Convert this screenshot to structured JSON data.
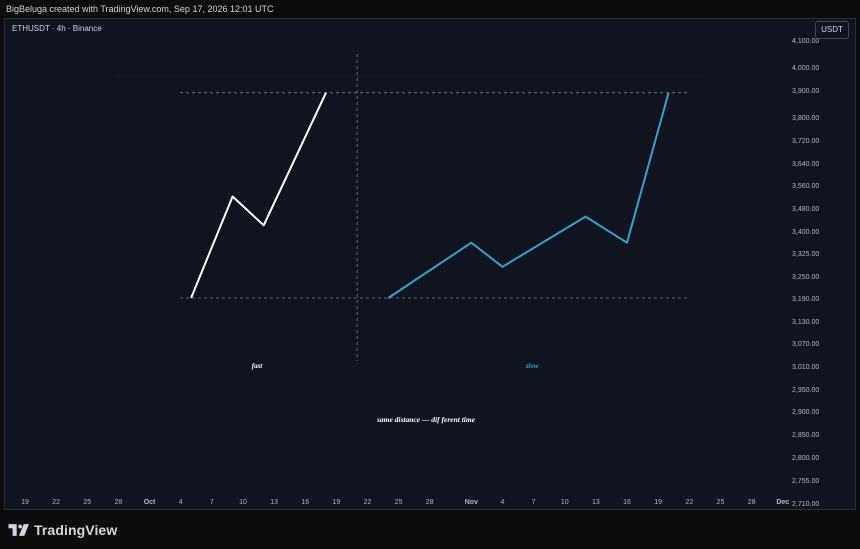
{
  "header": {
    "credit": "BigBeluga created with TradingView.com, Sep 17, 2026 12:01 UTC"
  },
  "chart_header": {
    "symbol": "ETHUSDT · 4h · Binance",
    "currency": "USDT"
  },
  "footer": {
    "brand": "TradingView",
    "logo_icon": "tradingview-logo-icon"
  },
  "colors": {
    "background": "#10141f",
    "fast": "#ffffff",
    "slow": "#3aa0c8",
    "axis_text": "#b2b5be",
    "guide": "#787b86"
  },
  "chart_data": {
    "type": "line",
    "title": "",
    "yaxis": {
      "ticks": [
        4100,
        4000,
        3900,
        3800,
        3720,
        3640,
        3560,
        3480,
        3400,
        3325,
        3250,
        3190,
        3130,
        3070,
        3010,
        2950,
        2900,
        2850,
        2800,
        2755,
        2710
      ],
      "labels": [
        "4,100.00",
        "4,000.00",
        "3,900.00",
        "3,800.00",
        "3,720.00",
        "3,640.00",
        "3,560.00",
        "3,480.00",
        "3,400.00",
        "3,325.00",
        "3,250.00",
        "3,190.00",
        "3,130.00",
        "3,070.00",
        "3,010.00",
        "2,950.00",
        "2,900.00",
        "2,850.00",
        "2,800.00",
        "2,755.00",
        "2,710.00"
      ]
    },
    "xaxis": {
      "labels": [
        "19",
        "22",
        "25",
        "28",
        "Oct",
        "4",
        "7",
        "10",
        "13",
        "16",
        "19",
        "22",
        "25",
        "28",
        "Nov",
        "4",
        "7",
        "10",
        "13",
        "16",
        "19",
        "22",
        "25",
        "28",
        "Dec"
      ],
      "bold": [
        "Oct",
        "Nov",
        "Dec"
      ]
    },
    "series": [
      {
        "name": "fast",
        "points": [
          [
            "Oct 5",
            3190
          ],
          [
            "Oct 9",
            3520
          ],
          [
            "Oct 12",
            3420
          ],
          [
            "Oct 18",
            3890
          ]
        ]
      },
      {
        "name": "slow",
        "points": [
          [
            "Oct 24",
            3190
          ],
          [
            "Nov 1",
            3360
          ],
          [
            "Nov 4",
            3280
          ],
          [
            "Nov 12",
            3450
          ],
          [
            "Nov 16",
            3360
          ],
          [
            "Nov 20",
            3890
          ]
        ]
      }
    ],
    "guides": {
      "levels": [
        3890,
        3190
      ],
      "divider": "Oct 21"
    },
    "annotations": {
      "fast_label": "fast",
      "slow_label": "slow",
      "caption": "same distance — dif ferent time"
    }
  }
}
